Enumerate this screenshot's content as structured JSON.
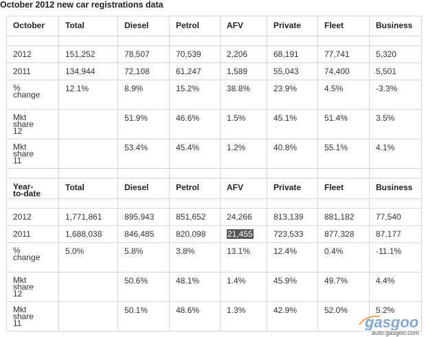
{
  "title": "October 2012 new car registrations data",
  "sections": [
    {
      "header": [
        "October",
        "Total",
        "Diesel",
        "Petrol",
        "AFV",
        "Private",
        "Fleet",
        "Business"
      ],
      "rows": [
        [
          "2012",
          "151,252",
          "78,507",
          "70,539",
          "2,206",
          "68,191",
          "77,741",
          "5,320"
        ],
        [
          "2011",
          "134,944",
          "72,108",
          "61,247",
          "1,589",
          "55,043",
          "74,400",
          "5,501"
        ],
        [
          "% change",
          "12.1%",
          "8.9%",
          "15.2%",
          "38.8%",
          "23.9%",
          "4.5%",
          "-3.3%"
        ],
        [
          "Mkt share 12",
          "",
          "51.9%",
          "46.6%",
          "1.5%",
          "45.1%",
          "51.4%",
          "3.5%"
        ],
        [
          "Mkt share 11",
          "",
          "53.4%",
          "45.4%",
          "1.2%",
          "40.8%",
          "55.1%",
          "4.1%"
        ]
      ]
    },
    {
      "header": [
        "Year-to-date",
        "Total",
        "Diesel",
        "Petrol",
        "AFV",
        "Private",
        "Fleet",
        "Business"
      ],
      "rows": [
        [
          "2012",
          "1,771,861",
          "895,943",
          "851,652",
          "24,266",
          "813,139",
          "881,182",
          "77,540"
        ],
        [
          "2011",
          "1,688,038",
          "846,485",
          "820,098",
          "21,455",
          "723,533",
          "877,328",
          "87,177"
        ],
        [
          "% change",
          "5.0%",
          "5.8%",
          "3.8%",
          "13.1%",
          "12.4%",
          "0.4%",
          "-11.1%"
        ],
        [
          "Mkt share 12",
          "",
          "50.6%",
          "48.1%",
          "1.4%",
          "45.9%",
          "49.7%",
          "4.4%"
        ],
        [
          "Mkt share 11",
          "",
          "50.1%",
          "48.6%",
          "1.3%",
          "42.9%",
          "52.0%",
          "5.2%"
        ]
      ]
    }
  ],
  "watermark": {
    "brand": "gasgoo",
    "url": "auto.gasgoo.com",
    "colors": {
      "blue": "#1f5fa8",
      "orange": "#e8892b"
    }
  }
}
